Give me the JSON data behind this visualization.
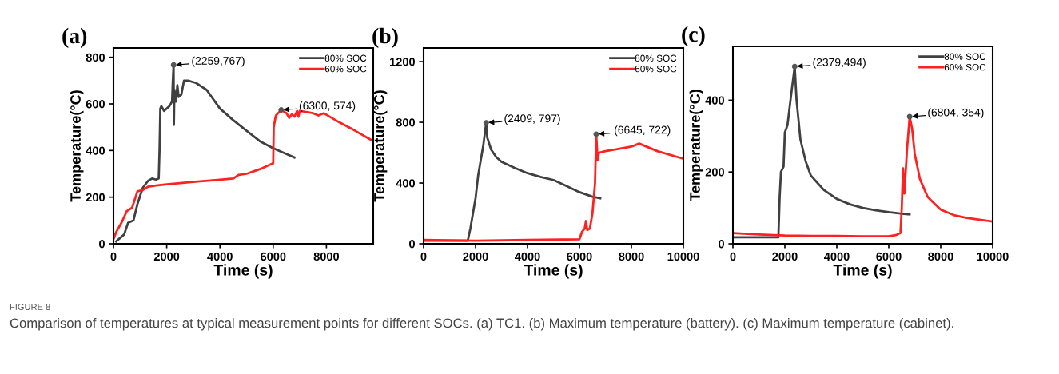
{
  "chart_data": [
    {
      "type": "line",
      "title": "(a)",
      "xlabel": "Time (s)",
      "ylabel": "Temperature(°C)",
      "xlim": [
        0,
        9760
      ],
      "xticks": [
        0,
        2000,
        4000,
        6000,
        8000
      ],
      "ylim": [
        0,
        840
      ],
      "yticks": [
        0,
        200,
        400,
        600,
        800
      ],
      "grid": false,
      "legend": "top right",
      "marker": "none",
      "line_style": "solid",
      "series": [
        {
          "name": "80% SOC",
          "color": "#404040",
          "x": [
            100,
            400,
            550,
            750,
            900,
            1100,
            1300,
            1450,
            1600,
            1700,
            1730,
            1760,
            1800,
            1900,
            2100,
            2200,
            2230,
            2259,
            2270,
            2290,
            2350,
            2400,
            2450,
            2550,
            2650,
            2800,
            3100,
            3500,
            4000,
            4500,
            5000,
            5500,
            6000,
            6500,
            6800
          ],
          "values": [
            10,
            40,
            90,
            100,
            170,
            240,
            270,
            280,
            275,
            280,
            400,
            580,
            590,
            570,
            590,
            610,
            700,
            767,
            510,
            660,
            610,
            680,
            630,
            640,
            700,
            700,
            690,
            660,
            580,
            530,
            485,
            440,
            410,
            385,
            370
          ]
        },
        {
          "name": "60% SOC",
          "color": "#ff2020",
          "x": [
            0,
            100,
            300,
            500,
            700,
            900,
            1100,
            1300,
            1600,
            2000,
            3000,
            4000,
            4500,
            4700,
            5000,
            5500,
            5900,
            6000,
            6020,
            6100,
            6300,
            6500,
            6600,
            6700,
            6800,
            6900,
            6950,
            7000,
            7500,
            7700,
            7900,
            8500,
            9000,
            9760
          ],
          "values": [
            20,
            50,
            90,
            140,
            155,
            225,
            230,
            245,
            250,
            255,
            265,
            275,
            280,
            295,
            300,
            320,
            340,
            345,
            500,
            550,
            574,
            560,
            540,
            555,
            545,
            570,
            545,
            570,
            560,
            550,
            560,
            520,
            490,
            440
          ]
        }
      ],
      "annotations": [
        {
          "text": "(2259,767)",
          "x": 2259,
          "y": 767
        },
        {
          "text": "(6300, 574)",
          "x": 6300,
          "y": 574
        },
        "FIGURE 8",
        "Comparison of temperatures at typical measurement points for different SOCs. (a) TC1. (b) Maximum temperature (battery). (c) Maximum temperature (cabinet)."
      ]
    },
    {
      "type": "line",
      "title": "(b)",
      "xlabel": "Time (s)",
      "ylabel": "Temperature(°C)",
      "xlim": [
        0,
        10000
      ],
      "xticks": [
        0,
        2000,
        4000,
        6000,
        8000,
        10000
      ],
      "ylim": [
        0,
        1290
      ],
      "yticks": [
        0,
        400,
        800,
        1200
      ],
      "grid": false,
      "legend": "top right",
      "marker": "none",
      "line_style": "solid",
      "series": [
        {
          "name": "80% SOC",
          "color": "#404040",
          "x": [
            0,
            1700,
            1800,
            1900,
            2000,
            2100,
            2200,
            2300,
            2409,
            2450,
            2600,
            2800,
            3000,
            3500,
            4000,
            4500,
            5000,
            5500,
            6000,
            6500,
            6800
          ],
          "values": [
            20,
            20,
            100,
            200,
            300,
            450,
            550,
            650,
            797,
            700,
            620,
            570,
            540,
            500,
            465,
            440,
            420,
            380,
            340,
            310,
            300
          ]
        },
        {
          "name": "60% SOC",
          "color": "#ff2020",
          "x": [
            0,
            2000,
            4000,
            6000,
            6100,
            6200,
            6250,
            6300,
            6400,
            6500,
            6600,
            6645,
            6700,
            6750,
            7000,
            7500,
            8000,
            8300,
            9000,
            10000
          ],
          "values": [
            25,
            20,
            25,
            30,
            80,
            100,
            150,
            90,
            100,
            200,
            400,
            722,
            550,
            600,
            610,
            625,
            640,
            660,
            610,
            560
          ]
        }
      ],
      "annotations": [
        {
          "text": "(2409, 797)",
          "x": 2409,
          "y": 797
        },
        {
          "text": "(6645, 722)",
          "x": 6645,
          "y": 722
        }
      ]
    },
    {
      "type": "line",
      "title": "(c)",
      "xlabel": "Time (s)",
      "ylabel": "Temperature(°C)",
      "xlim": [
        0,
        10000
      ],
      "xticks": [
        0,
        2000,
        4000,
        6000,
        8000,
        10000
      ],
      "ylim": [
        0,
        550
      ],
      "yticks": [
        0,
        200,
        400
      ],
      "grid": false,
      "legend": "top right",
      "marker": "none",
      "line_style": "solid",
      "series": [
        {
          "name": "80% SOC",
          "color": "#404040",
          "x": [
            0,
            1750,
            1800,
            1850,
            1950,
            2000,
            2100,
            2250,
            2379,
            2450,
            2600,
            2800,
            3000,
            3500,
            4000,
            4500,
            5000,
            5500,
            6000,
            6500,
            6800
          ],
          "values": [
            18,
            18,
            130,
            200,
            215,
            310,
            330,
            420,
            494,
            400,
            290,
            230,
            190,
            150,
            125,
            110,
            100,
            93,
            88,
            84,
            82
          ]
        },
        {
          "name": "60% SOC",
          "color": "#ff2020",
          "x": [
            0,
            1000,
            2000,
            3000,
            4000,
            5000,
            6000,
            6300,
            6450,
            6500,
            6550,
            6600,
            6700,
            6804,
            6900,
            7000,
            7200,
            7500,
            8000,
            8500,
            9000,
            10000
          ],
          "values": [
            30,
            26,
            23,
            22,
            22,
            21,
            21,
            25,
            30,
            100,
            210,
            140,
            260,
            354,
            320,
            250,
            180,
            130,
            95,
            80,
            72,
            62
          ]
        }
      ],
      "annotations": [
        {
          "text": "(2379,494)",
          "x": 2379,
          "y": 494
        },
        {
          "text": "(6804, 354)",
          "x": 6804,
          "y": 354
        }
      ]
    }
  ]
}
